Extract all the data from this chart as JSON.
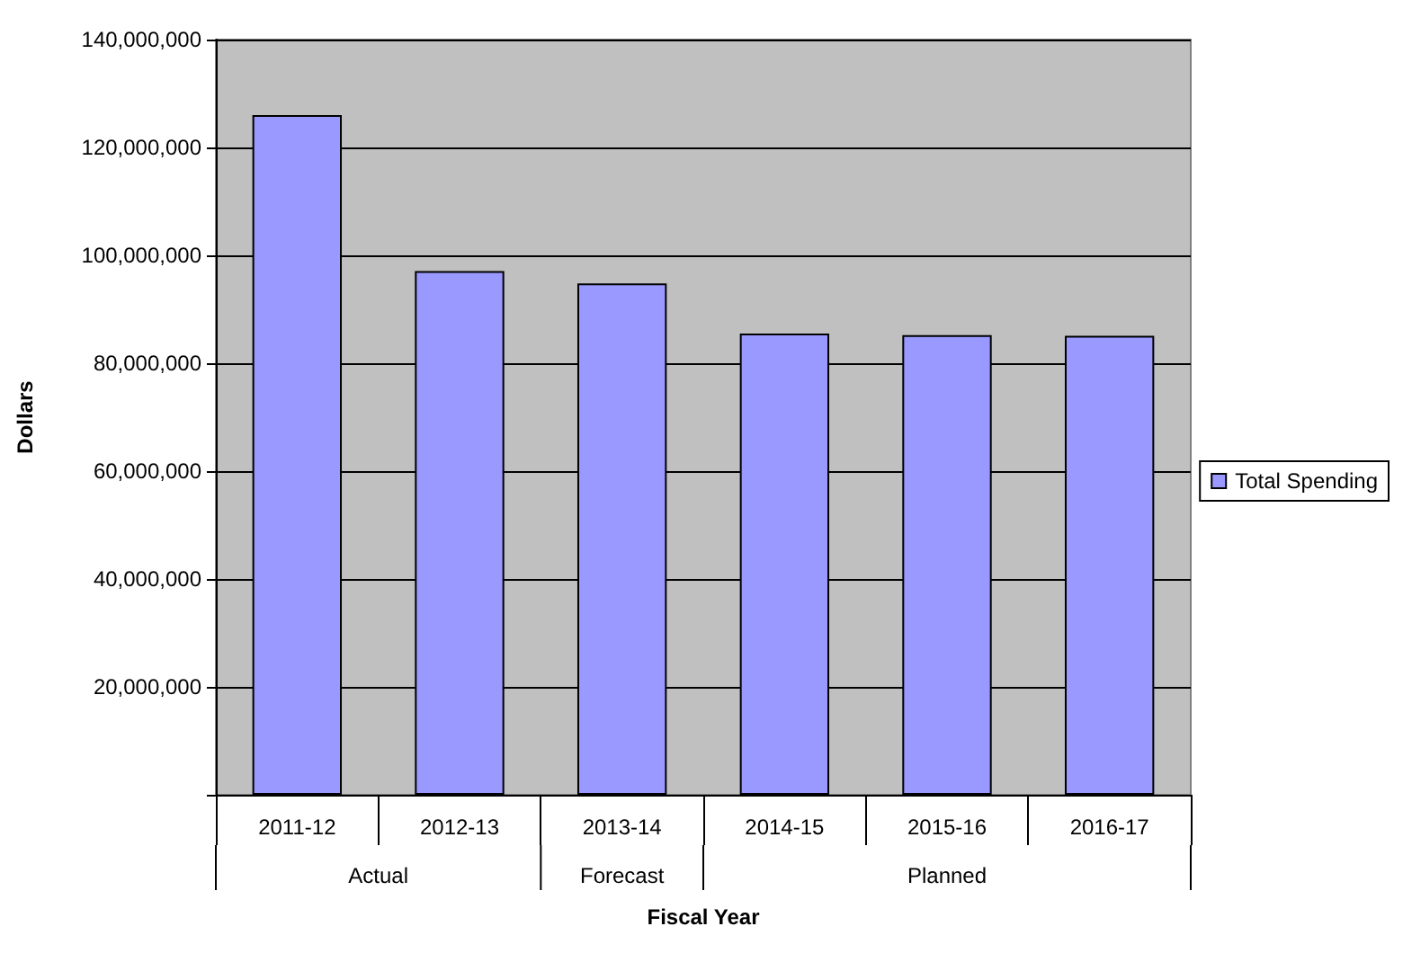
{
  "chart_data": {
    "type": "bar",
    "xlabel": "Fiscal Year",
    "ylabel": "Dollars",
    "categories": [
      "2011-12",
      "2012-13",
      "2013-14",
      "2014-15",
      "2015-16",
      "2016-17"
    ],
    "series": [
      {
        "name": "Total Spending",
        "color": "#9999ff",
        "values": [
          126000000,
          97100000,
          94800000,
          85500000,
          85200000,
          85100000
        ]
      }
    ],
    "ylim": [
      0,
      140000000
    ],
    "yticks": [
      {
        "value": 0,
        "label": null
      },
      {
        "value": 20000000,
        "label": "20,000,000"
      },
      {
        "value": 40000000,
        "label": "40,000,000"
      },
      {
        "value": 60000000,
        "label": "60,000,000"
      },
      {
        "value": 80000000,
        "label": "80,000,000"
      },
      {
        "value": 100000000,
        "label": "100,000,000"
      },
      {
        "value": 120000000,
        "label": "120,000,000"
      },
      {
        "value": 140000000,
        "label": "140,000,000"
      }
    ],
    "annotations": [
      "Actual",
      "Forecast",
      "Planned"
    ],
    "grid": "y",
    "legend": "right"
  }
}
